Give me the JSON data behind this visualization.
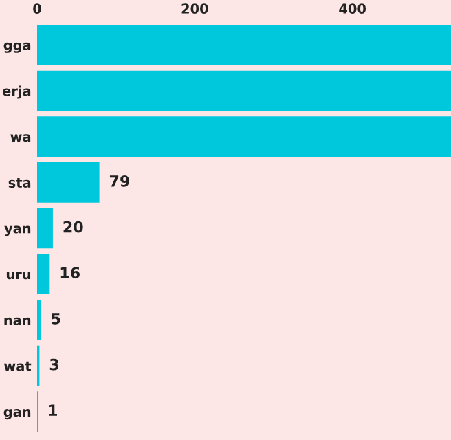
{
  "chart_data": {
    "type": "bar",
    "orientation": "horizontal",
    "categories": [
      "gga",
      "erja",
      "wa",
      "sta",
      "yan",
      "uru",
      "nan",
      "wat",
      "gan"
    ],
    "values": [
      525,
      525,
      525,
      79,
      20,
      16,
      5,
      3,
      1
    ],
    "value_labels": [
      null,
      null,
      null,
      "79",
      "20",
      "16",
      "5",
      "3",
      "1"
    ],
    "color": "#00c8dc",
    "xlim": [
      0,
      525
    ],
    "xticks": [
      0,
      200,
      400
    ],
    "grid": false,
    "legend": false
  }
}
